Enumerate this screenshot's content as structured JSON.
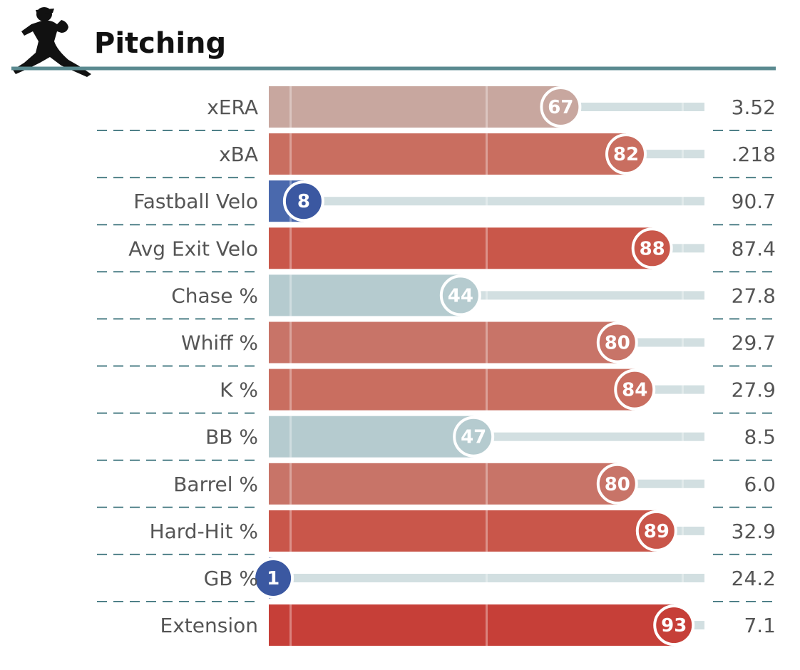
{
  "header": {
    "title": "Pitching",
    "icon": "pitcher-icon"
  },
  "chart_data": {
    "type": "bar",
    "orientation": "horizontal",
    "xlim": [
      0,
      100
    ],
    "categories": [
      "xERA",
      "xBA",
      "Fastball Velo",
      "Avg Exit Velo",
      "Chase %",
      "Whiff %",
      "K %",
      "BB %",
      "Barrel %",
      "Hard-Hit %",
      "GB %",
      "Extension"
    ],
    "percentiles": [
      67,
      82,
      8,
      88,
      44,
      80,
      84,
      47,
      80,
      89,
      1,
      93
    ],
    "stat_values": [
      "3.52",
      ".218",
      "90.7",
      "87.4",
      "27.8",
      "29.7",
      "27.9",
      "8.5",
      "6.0",
      "32.9",
      "24.2",
      "7.1"
    ],
    "bar_colors": [
      "#c8a79f",
      "#c96e60",
      "#4a69ad",
      "#c9574a",
      "#b5cbcf",
      "#c87468",
      "#c96e60",
      "#b5cbcf",
      "#c87468",
      "#c9564a",
      "#3d5ea6",
      "#c63f38"
    ],
    "circle_colors": [
      "#c8a79f",
      "#c96e60",
      "#3b58a1",
      "#c9574a",
      "#b5cbcf",
      "#c87468",
      "#c96e60",
      "#b5cbcf",
      "#c87468",
      "#c9564a",
      "#3b58a1",
      "#c63f38"
    ],
    "track_color": "#d2dfe1",
    "header_rule_color": "#5a8a90",
    "row_divider_color": "#4f8088"
  }
}
